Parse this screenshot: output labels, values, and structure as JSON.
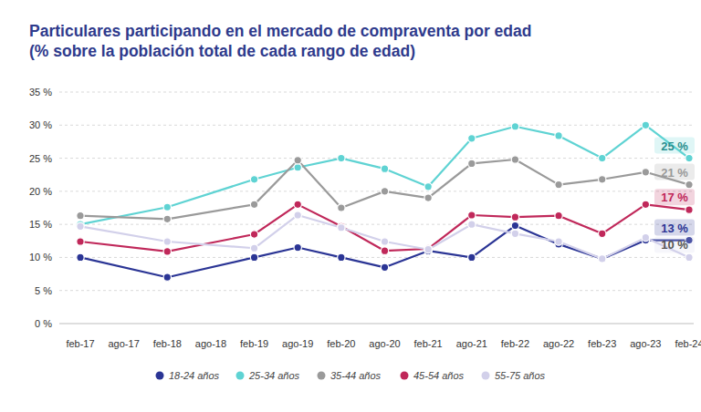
{
  "chart_data": {
    "type": "line",
    "title": "Particulares participando en el mercado de compraventa por edad",
    "subtitle": "(% sobre la población total de cada rango de edad)",
    "x": [
      "feb-17",
      "feb-18",
      "feb-19",
      "ago-19",
      "feb-20",
      "ago-20",
      "feb-21",
      "ago-21",
      "feb-22",
      "ago-22",
      "feb-23",
      "ago-23",
      "feb-24"
    ],
    "xticks": [
      "feb-17",
      "ago-17",
      "feb-18",
      "ago-18",
      "feb-19",
      "ago-19",
      "feb-20",
      "ago-20",
      "feb-21",
      "ago-21",
      "feb-22",
      "ago-22",
      "feb-23",
      "ago-23",
      "feb-24"
    ],
    "ylim": [
      0,
      35
    ],
    "yticks": [
      {
        "value": 0,
        "label": "0 %"
      },
      {
        "value": 5,
        "label": "5 %"
      },
      {
        "value": 10,
        "label": "10 %"
      },
      {
        "value": 15,
        "label": "15 %"
      },
      {
        "value": 20,
        "label": "20 %"
      },
      {
        "value": 25,
        "label": "25 %"
      },
      {
        "value": 30,
        "label": "30 %"
      },
      {
        "value": 35,
        "label": "35 %"
      }
    ],
    "grid": true,
    "legend": "bottom",
    "marker": "circle",
    "series": [
      {
        "name": "18-24 años",
        "color": "#2b3595",
        "values": [
          10,
          7,
          10,
          11.5,
          10,
          8.5,
          11,
          10,
          14.8,
          12,
          9.8,
          12.6,
          12.6
        ],
        "end_label": "13 %"
      },
      {
        "name": "25-34 años",
        "color": "#5fd3d3",
        "values": [
          15,
          17.6,
          21.8,
          23.6,
          25,
          23.4,
          20.7,
          28,
          29.8,
          28.4,
          25,
          30,
          25
        ],
        "end_label": "25 %"
      },
      {
        "name": "35-44 años",
        "color": "#9a9a9a",
        "values": [
          16.3,
          15.8,
          18,
          24.7,
          17.5,
          20,
          19,
          24.2,
          24.8,
          21,
          21.8,
          22.9,
          21
        ],
        "end_label": "21 %"
      },
      {
        "name": "45-54 años",
        "color": "#c0285a",
        "values": [
          12.4,
          10.9,
          13.5,
          18,
          14.7,
          11,
          11.3,
          16.4,
          16.1,
          16.3,
          13.6,
          18,
          17.2
        ],
        "end_label": "17 %"
      },
      {
        "name": "55-75 años",
        "color": "#d2d0ea",
        "values": [
          14.7,
          12.4,
          11.4,
          16.4,
          14.5,
          12.4,
          11.2,
          15,
          13.6,
          12.4,
          9.8,
          13,
          10
        ],
        "end_label": "10 %"
      }
    ]
  }
}
